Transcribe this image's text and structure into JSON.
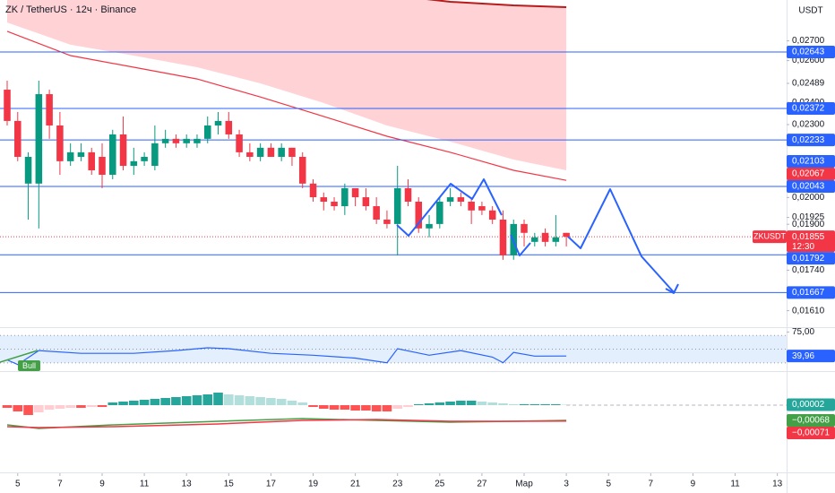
{
  "chart_data": {
    "type": "candlestick",
    "title": "ZK / TetherUS · 12ч · Binance",
    "y_axis_label": "USDT",
    "log_scale": true,
    "up_color": "#089981",
    "down_color": "#f23645",
    "xlim": [
      -0.68,
      73.88
    ],
    "ylim": [
      0.0156,
      0.0292
    ],
    "xticks": [
      {
        "value": 1,
        "label": "5"
      },
      {
        "value": 5,
        "label": "7"
      },
      {
        "value": 9,
        "label": "9"
      },
      {
        "value": 13,
        "label": "11"
      },
      {
        "value": 17,
        "label": "13"
      },
      {
        "value": 21,
        "label": "15"
      },
      {
        "value": 25,
        "label": "17"
      },
      {
        "value": 29,
        "label": "19"
      },
      {
        "value": 33,
        "label": "21"
      },
      {
        "value": 37,
        "label": "23"
      },
      {
        "value": 41,
        "label": "25"
      },
      {
        "value": 45,
        "label": "27"
      },
      {
        "value": 49,
        "label": "Мар"
      },
      {
        "value": 53,
        "label": "3"
      },
      {
        "value": 57,
        "label": "5"
      },
      {
        "value": 61,
        "label": "7"
      },
      {
        "value": 65,
        "label": "9"
      },
      {
        "value": 69,
        "label": "11"
      },
      {
        "value": 73,
        "label": "13"
      }
    ],
    "yticks": [
      {
        "value": 0.027,
        "label": "0,02700"
      },
      {
        "value": 0.026,
        "label": "0,02600"
      },
      {
        "value": 0.02489,
        "label": "0,02489"
      },
      {
        "value": 0.024,
        "label": "0,02400"
      },
      {
        "value": 0.023,
        "label": "0,02300"
      },
      {
        "value": 0.02067,
        "label": "0,02067"
      },
      {
        "value": 0.02,
        "label": "0,02000"
      },
      {
        "value": 0.01925,
        "label": "0,01925"
      },
      {
        "value": 0.019,
        "label": "0,01900"
      },
      {
        "value": 0.0174,
        "label": "0,01740"
      },
      {
        "value": 0.0161,
        "label": "0,01610"
      }
    ],
    "open": [
      0.02459,
      0.02316,
      0.02054,
      0.02054,
      0.02438,
      0.02296,
      0.02144,
      0.02162,
      0.02181,
      0.02162,
      0.02089,
      0.02257,
      0.02125,
      0.02144,
      0.02125,
      0.02219,
      0.02238,
      0.02219,
      0.02219,
      0.02238,
      0.02296,
      0.02316,
      0.02257,
      0.02181,
      0.02162,
      0.022,
      0.02162,
      0.022,
      0.02162,
      0.02054,
      0.02001,
      0.01984,
      0.01967,
      0.02036,
      0.02001,
      0.01967,
      0.01917,
      0.01901,
      0.02036,
      0.01984,
      0.01885,
      0.01901,
      0.01984,
      0.02001,
      0.01984,
      0.01967,
      0.01951,
      0.01917,
      0.0179,
      0.01901,
      0.01837,
      0.01869,
      0.01837,
      0.01869
    ],
    "high": [
      0.02502,
      0.02356,
      0.02181,
      0.02502,
      0.02459,
      0.02356,
      0.02219,
      0.02219,
      0.022,
      0.02219,
      0.02277,
      0.02336,
      0.022,
      0.02181,
      0.02296,
      0.02277,
      0.02257,
      0.02257,
      0.02257,
      0.02336,
      0.02356,
      0.02356,
      0.02277,
      0.02219,
      0.02219,
      0.02219,
      0.02219,
      0.022,
      0.02181,
      0.02071,
      0.02019,
      0.02001,
      0.02054,
      0.02036,
      0.02036,
      0.02001,
      0.01951,
      0.02125,
      0.02071,
      0.02001,
      0.01934,
      0.02001,
      0.02036,
      0.02019,
      0.02001,
      0.01984,
      0.01967,
      0.01951,
      0.01917,
      0.01917,
      0.01869,
      0.01885,
      0.01934,
      0.01869
    ],
    "low": [
      0.02296,
      0.02144,
      0.01917,
      0.01885,
      0.02238,
      0.02089,
      0.02125,
      0.02144,
      0.02089,
      0.02036,
      0.02071,
      0.02107,
      0.02089,
      0.02125,
      0.02107,
      0.022,
      0.022,
      0.022,
      0.022,
      0.02219,
      0.02257,
      0.02238,
      0.02162,
      0.02144,
      0.02144,
      0.02162,
      0.02144,
      0.02125,
      0.02036,
      0.01984,
      0.01951,
      0.01951,
      0.01934,
      0.01967,
      0.01951,
      0.01901,
      0.01885,
      0.0179,
      0.01967,
      0.01869,
      0.01853,
      0.01885,
      0.01967,
      0.01967,
      0.01901,
      0.01934,
      0.01901,
      0.01775,
      0.01775,
      0.01821,
      0.01821,
      0.01821,
      0.01821,
      0.01821
    ],
    "close": [
      0.02316,
      0.02162,
      0.02162,
      0.02438,
      0.02296,
      0.02144,
      0.02181,
      0.02181,
      0.02107,
      0.02089,
      0.02257,
      0.02125,
      0.02144,
      0.02162,
      0.02219,
      0.02238,
      0.02219,
      0.02238,
      0.02238,
      0.02296,
      0.02316,
      0.02257,
      0.02181,
      0.02162,
      0.022,
      0.02162,
      0.022,
      0.02162,
      0.02054,
      0.02001,
      0.01984,
      0.01967,
      0.02036,
      0.02001,
      0.01967,
      0.01917,
      0.01901,
      0.02036,
      0.01984,
      0.01885,
      0.01901,
      0.01984,
      0.02001,
      0.01984,
      0.01951,
      0.01951,
      0.01917,
      0.0179,
      0.01901,
      0.01869,
      0.01853,
      0.01837,
      0.01853,
      0.01855
    ],
    "last_price": {
      "symbol": "ZKUSDT",
      "label": "0,01855",
      "countdown": "12:30"
    },
    "levels": {
      "color": "#2962ff",
      "values": [
        0.02643,
        0.02372,
        0.02233,
        0.02043,
        0.01792,
        0.01667
      ],
      "value_labels": [
        "0,02643",
        "0,02372",
        "0,02233",
        "0,02043",
        "0,01792",
        "0,01667"
      ]
    },
    "marker": {
      "value": 0.02103,
      "label": "0,02103",
      "color": "#2962ff"
    },
    "ma_cloud": {
      "x": [
        0,
        6,
        12,
        18,
        24,
        30,
        36,
        42,
        48,
        53
      ],
      "ma": [
        0.0275,
        0.02625,
        0.02567,
        0.0251,
        0.02425,
        0.02336,
        0.02249,
        0.02181,
        0.02107,
        0.02067
      ],
      "ma_label": "0,02067",
      "ma_color": "#f23645",
      "upper": [
        0.0345,
        0.0335,
        0.0326,
        0.0318,
        0.031,
        0.0303,
        0.0295,
        0.0291,
        0.0289,
        0.0288
      ],
      "lower": [
        0.02797,
        0.0268,
        0.02625,
        0.02567,
        0.02489,
        0.02397,
        0.02296,
        0.02226,
        0.02151,
        0.02107
      ],
      "upper_color": "#b71c1c",
      "fill": "#ffcdd2"
    },
    "rsi": {
      "ylim": [
        18,
        82
      ],
      "yticks": [
        {
          "value": 75,
          "label": "75,00"
        }
      ],
      "bands": [
        70,
        50,
        30
      ],
      "x": [
        0,
        1,
        3,
        7,
        12,
        16,
        19,
        21,
        25,
        29,
        33,
        36,
        37,
        40,
        43,
        46,
        47,
        48,
        50,
        53
      ],
      "values": [
        34.3,
        27.5,
        47.9,
        43.9,
        43.9,
        47.9,
        52.0,
        50.7,
        43.9,
        41.1,
        37.0,
        30.2,
        50.7,
        41.1,
        47.9,
        38.4,
        30.2,
        45.2,
        39.8,
        39.96
      ],
      "value_label": "39,96",
      "color": "#2962ff",
      "band_fill": "#e3effd",
      "divergence_label": "Bull",
      "divergence_color": "#43a047"
    },
    "macd": {
      "ylim": [
        -0.003,
        0.00144
      ],
      "hist": [
        -0.00012,
        -0.00028,
        -0.00044,
        -0.00032,
        -0.0002,
        -0.00016,
        -0.00012,
        -0.00012,
        -8e-05,
        -8e-05,
        0.00012,
        0.00016,
        0.0002,
        0.00024,
        0.00028,
        0.00032,
        0.00036,
        0.0004,
        0.00044,
        0.00048,
        0.00056,
        0.00048,
        0.00044,
        0.0004,
        0.00036,
        0.00032,
        0.00028,
        0.0002,
        0.00012,
        -8e-05,
        -0.00016,
        -0.0002,
        -0.0002,
        -0.00024,
        -0.00024,
        -0.00028,
        -0.00028,
        -0.00016,
        -8e-05,
        4e-05,
        8e-05,
        0.00012,
        0.00016,
        0.0002,
        0.0002,
        0.00016,
        0.00012,
        8e-05,
        4e-05,
        4e-05,
        4e-05,
        4e-05,
        4e-05,
        2e-05
      ],
      "hist_label": "0,00002",
      "colors": {
        "grow_above": "#26a69a",
        "fall_above": "#b2dfdb",
        "grow_below": "#ffcdd2",
        "fall_below": "#ff5252"
      },
      "x": [
        0,
        3,
        10,
        20,
        28,
        35,
        42,
        48,
        53
      ],
      "macd": [
        -0.00088,
        -0.00104,
        -0.00088,
        -0.00072,
        -0.0006,
        -0.00068,
        -0.00076,
        -0.00072,
        -0.00068
      ],
      "signal": [
        -0.00096,
        -0.001,
        -0.00096,
        -0.00084,
        -0.00068,
        -0.00064,
        -0.00072,
        -0.00072,
        -0.00071
      ],
      "macd_label": "−0,00068",
      "signal_label": "−0,00071",
      "macd_color": "#43a047",
      "signal_color": "#f23645"
    }
  }
}
